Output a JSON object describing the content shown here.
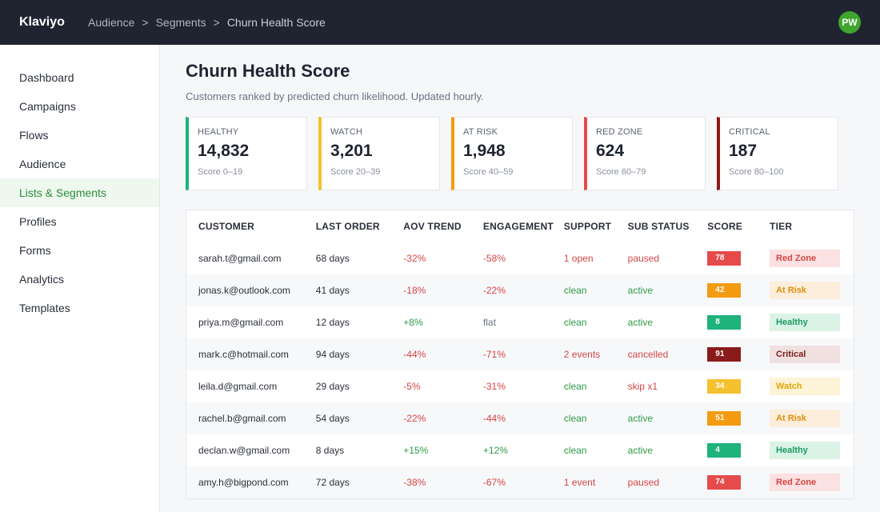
{
  "app": {
    "name": "Klaviyo"
  },
  "breadcrumb": {
    "items": [
      "Audience",
      "Segments",
      "Churn Health Score"
    ],
    "separator": ">"
  },
  "user": {
    "initials": "PW"
  },
  "sidebar": {
    "items": [
      {
        "label": "Dashboard",
        "active": false
      },
      {
        "label": "Campaigns",
        "active": false
      },
      {
        "label": "Flows",
        "active": false
      },
      {
        "label": "Audience",
        "active": false
      },
      {
        "label": "Lists & Segments",
        "active": true
      },
      {
        "label": "Profiles",
        "active": false
      },
      {
        "label": "Forms",
        "active": false
      },
      {
        "label": "Analytics",
        "active": false
      },
      {
        "label": "Templates",
        "active": false
      }
    ]
  },
  "page": {
    "title": "Churn Health Score",
    "subtitle": "Customers ranked by predicted churn likelihood. Updated hourly."
  },
  "summary_cards": [
    {
      "label": "HEALTHY",
      "value": "14,832",
      "range": "Score 0–19",
      "color": "#1db37a"
    },
    {
      "label": "WATCH",
      "value": "3,201",
      "range": "Score 20–39",
      "color": "#f4c12f"
    },
    {
      "label": "AT RISK",
      "value": "1,948",
      "range": "Score 40–59",
      "color": "#f39c12"
    },
    {
      "label": "RED ZONE",
      "value": "624",
      "range": "Score 60–79",
      "color": "#e54b4b"
    },
    {
      "label": "CRITICAL",
      "value": "187",
      "range": "Score 80–100",
      "color": "#8b1a1a"
    }
  ],
  "table": {
    "columns": [
      "CUSTOMER",
      "LAST ORDER",
      "AOV TREND",
      "ENGAGEMENT",
      "SUPPORT",
      "SUB STATUS",
      "SCORE",
      "TIER"
    ],
    "rows": [
      {
        "customer": "sarah.t@gmail.com",
        "last_order": "68 days",
        "aov": "-32%",
        "aov_tone": "neg",
        "engagement": "-58%",
        "eng_tone": "neg",
        "support": "1 open",
        "support_tone": "neg",
        "sub": "paused",
        "sub_tone": "neg",
        "score": "78",
        "tier": "Red Zone"
      },
      {
        "customer": "jonas.k@outlook.com",
        "last_order": "41 days",
        "aov": "-18%",
        "aov_tone": "neg",
        "engagement": "-22%",
        "eng_tone": "neg",
        "support": "clean",
        "support_tone": "pos",
        "sub": "active",
        "sub_tone": "pos",
        "score": "42",
        "tier": "At Risk"
      },
      {
        "customer": "priya.m@gmail.com",
        "last_order": "12 days",
        "aov": "+8%",
        "aov_tone": "pos",
        "engagement": "flat",
        "eng_tone": "neutral",
        "support": "clean",
        "support_tone": "pos",
        "sub": "active",
        "sub_tone": "pos",
        "score": "8",
        "tier": "Healthy"
      },
      {
        "customer": "mark.c@hotmail.com",
        "last_order": "94 days",
        "aov": "-44%",
        "aov_tone": "neg",
        "engagement": "-71%",
        "eng_tone": "neg",
        "support": "2 events",
        "support_tone": "neg",
        "sub": "cancelled",
        "sub_tone": "neg",
        "score": "91",
        "tier": "Critical"
      },
      {
        "customer": "leila.d@gmail.com",
        "last_order": "29 days",
        "aov": "-5%",
        "aov_tone": "neg",
        "engagement": "-31%",
        "eng_tone": "neg",
        "support": "clean",
        "support_tone": "pos",
        "sub": "skip x1",
        "sub_tone": "neg",
        "score": "34",
        "tier": "Watch"
      },
      {
        "customer": "rachel.b@gmail.com",
        "last_order": "54 days",
        "aov": "-22%",
        "aov_tone": "neg",
        "engagement": "-44%",
        "eng_tone": "neg",
        "support": "clean",
        "support_tone": "pos",
        "sub": "active",
        "sub_tone": "pos",
        "score": "51",
        "tier": "At Risk"
      },
      {
        "customer": "declan.w@gmail.com",
        "last_order": "8 days",
        "aov": "+15%",
        "aov_tone": "pos",
        "engagement": "+12%",
        "eng_tone": "pos",
        "support": "clean",
        "support_tone": "pos",
        "sub": "active",
        "sub_tone": "pos",
        "score": "4",
        "tier": "Healthy"
      },
      {
        "customer": "amy.h@bigpond.com",
        "last_order": "72 days",
        "aov": "-38%",
        "aov_tone": "neg",
        "engagement": "-67%",
        "eng_tone": "neg",
        "support": "1 event",
        "support_tone": "neg",
        "sub": "paused",
        "sub_tone": "neg",
        "score": "74",
        "tier": "Red Zone"
      }
    ]
  },
  "tier_styles": {
    "Healthy": {
      "score_bg": "#1db37a",
      "badge_bg": "#daf3e6",
      "badge_fg": "#1a9a62"
    },
    "Watch": {
      "score_bg": "#f4c12f",
      "badge_bg": "#fdf3d6",
      "badge_fg": "#e0a800"
    },
    "At Risk": {
      "score_bg": "#f39c12",
      "badge_bg": "#fdeedb",
      "badge_fg": "#e08e0b"
    },
    "Red Zone": {
      "score_bg": "#e54b4b",
      "badge_bg": "#fbe1e1",
      "badge_fg": "#d64545"
    },
    "Critical": {
      "score_bg": "#8b1a1a",
      "badge_bg": "#f1e0e0",
      "badge_fg": "#7a1c1c"
    }
  }
}
